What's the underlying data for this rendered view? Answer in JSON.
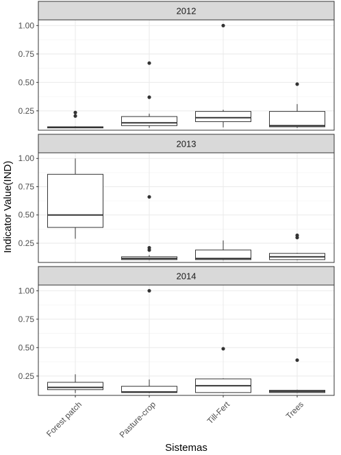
{
  "chart_data": {
    "type": "boxplot",
    "xlabel": "Sistemas",
    "ylabel": "Indicator Value(IND)",
    "categories": [
      "Forest patch",
      "Pasture-crop",
      "Till-Fert",
      "Trees"
    ],
    "y_ticks": [
      0.25,
      0.5,
      0.75,
      1.0
    ],
    "y_tick_labels": [
      "0.25",
      "0.50",
      "0.75",
      "1.00"
    ],
    "ylim": [
      0.08,
      1.05
    ],
    "grid": true,
    "colors": {
      "panel_border": "#333333",
      "strip_fill": "#d9d9d9",
      "grid": "#ebebeb",
      "box": "#333333",
      "outlier": "#333333"
    },
    "panels": [
      {
        "title": "2012",
        "boxes": [
          {
            "category": "Forest patch",
            "min": 0.1,
            "q1": 0.1,
            "median": 0.105,
            "q3": 0.11,
            "max": 0.115,
            "outliers": [
              0.205,
              0.235
            ]
          },
          {
            "category": "Pasture-crop",
            "min": 0.1,
            "q1": 0.12,
            "median": 0.145,
            "q3": 0.2,
            "max": 0.225,
            "outliers": [
              0.37,
              0.67
            ]
          },
          {
            "category": "Till-Fert",
            "min": 0.105,
            "q1": 0.155,
            "median": 0.19,
            "q3": 0.245,
            "max": 0.26,
            "outliers": [
              1.0
            ]
          },
          {
            "category": "Trees",
            "min": 0.1,
            "q1": 0.11,
            "median": 0.12,
            "q3": 0.245,
            "max": 0.31,
            "outliers": [
              0.485
            ]
          }
        ]
      },
      {
        "title": "2013",
        "boxes": [
          {
            "category": "Forest patch",
            "min": 0.29,
            "q1": 0.39,
            "median": 0.5,
            "q3": 0.86,
            "max": 1.0,
            "outliers": []
          },
          {
            "category": "Pasture-crop",
            "min": 0.1,
            "q1": 0.105,
            "median": 0.115,
            "q3": 0.13,
            "max": 0.145,
            "outliers": [
              0.19,
              0.21,
              0.66
            ]
          },
          {
            "category": "Till-Fert",
            "min": 0.1,
            "q1": 0.105,
            "median": 0.115,
            "q3": 0.19,
            "max": 0.275,
            "outliers": []
          },
          {
            "category": "Trees",
            "min": 0.1,
            "q1": 0.105,
            "median": 0.13,
            "q3": 0.16,
            "max": 0.165,
            "outliers": [
              0.3,
              0.32
            ]
          }
        ]
      },
      {
        "title": "2014",
        "boxes": [
          {
            "category": "Forest patch",
            "min": 0.1,
            "q1": 0.13,
            "median": 0.15,
            "q3": 0.195,
            "max": 0.265,
            "outliers": []
          },
          {
            "category": "Pasture-crop",
            "min": 0.1,
            "q1": 0.105,
            "median": 0.11,
            "q3": 0.16,
            "max": 0.22,
            "outliers": [
              1.0
            ]
          },
          {
            "category": "Till-Fert",
            "min": 0.1,
            "q1": 0.105,
            "median": 0.165,
            "q3": 0.225,
            "max": 0.23,
            "outliers": [
              0.49
            ]
          },
          {
            "category": "Trees",
            "min": 0.1,
            "q1": 0.105,
            "median": 0.115,
            "q3": 0.125,
            "max": 0.13,
            "outliers": [
              0.39
            ]
          }
        ]
      }
    ]
  }
}
